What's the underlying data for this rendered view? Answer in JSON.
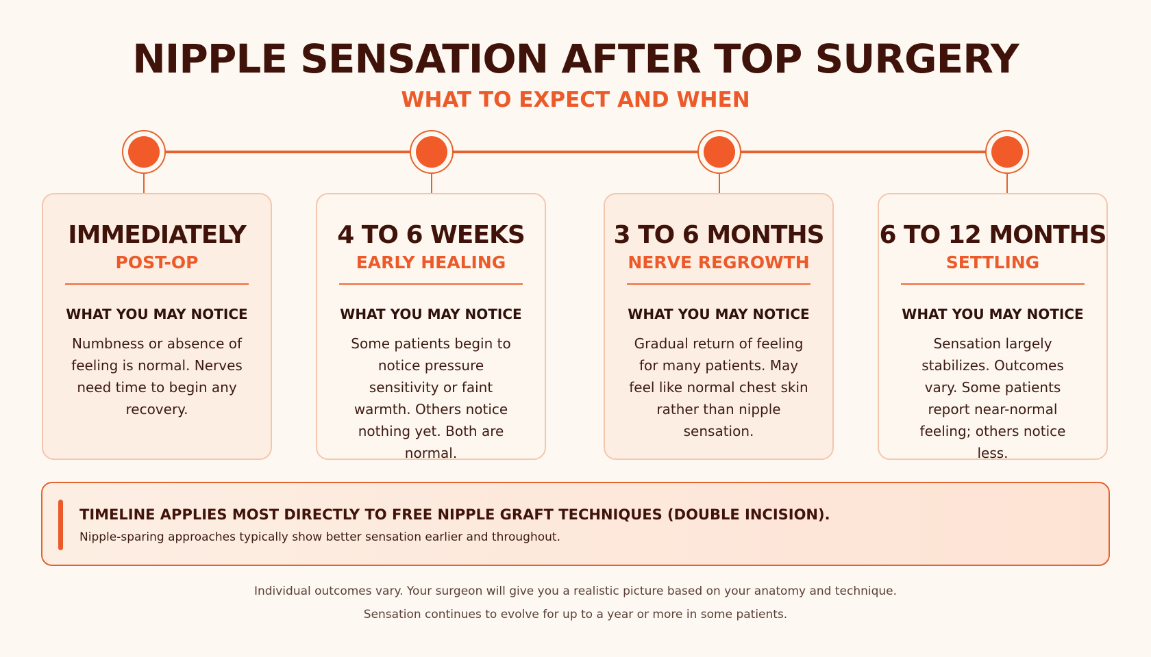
{
  "header": {
    "title": "NIPPLE SENSATION AFTER TOP SURGERY",
    "subtitle": "WHAT TO EXPECT AND WHEN"
  },
  "stages": [
    {
      "phase": "IMMEDIATELY",
      "label": "POST-OP",
      "notice_heading": "WHAT YOU MAY NOTICE",
      "description": "Numbness or absence of feeling is normal. Nerves need time to begin any recovery."
    },
    {
      "phase": "4 TO 6 WEEKS",
      "label": "EARLY HEALING",
      "notice_heading": "WHAT YOU MAY NOTICE",
      "description": "Some patients begin to notice pressure sensitivity or faint warmth. Others notice nothing yet. Both are normal."
    },
    {
      "phase": "3 TO 6 MONTHS",
      "label": "NERVE REGROWTH",
      "notice_heading": "WHAT YOU MAY NOTICE",
      "description": "Gradual return of feeling for many patients. May feel like normal chest skin rather than nipple sensation."
    },
    {
      "phase": "6 TO 12 MONTHS",
      "label": "SETTLING",
      "notice_heading": "WHAT YOU MAY NOTICE",
      "description": "Sensation largely stabilizes. Outcomes vary. Some patients report near-normal feeling; others notice less."
    }
  ],
  "note": {
    "title": "TIMELINE APPLIES MOST DIRECTLY TO FREE NIPPLE GRAFT TECHNIQUES (DOUBLE INCISION).",
    "body": "Nipple-sparing approaches typically show better sensation earlier and throughout."
  },
  "footer": {
    "line1": "Individual outcomes vary. Your surgeon will give you a realistic picture based on your anatomy and technique.",
    "line2": "Sensation continues to evolve for up to a year or more in some patients."
  },
  "colors": {
    "accent": "#ec5a2a",
    "title": "#3f120a",
    "background": "#fdf8f1"
  }
}
